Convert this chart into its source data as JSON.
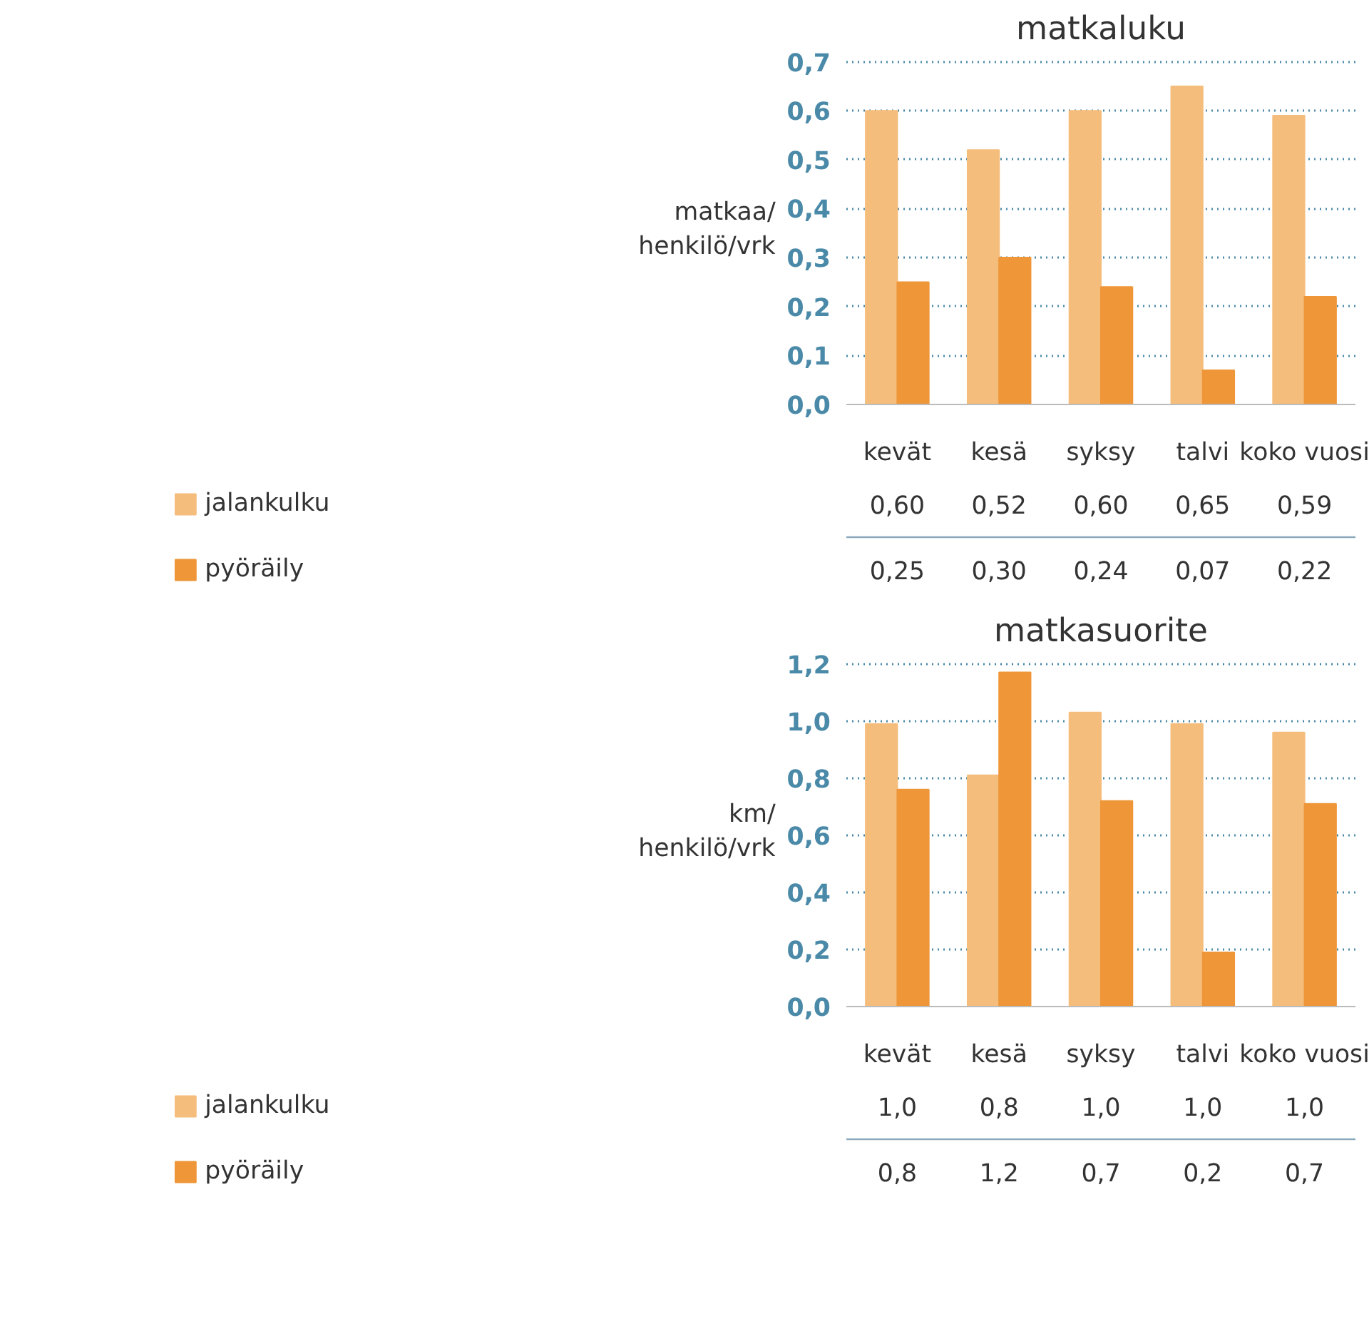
{
  "chart_data": [
    {
      "type": "bar",
      "title": "matkaluku",
      "ylabel": "matkaa/ henkilö/vrk",
      "categories": [
        "kevät",
        "kesä",
        "syksy",
        "talvi",
        "koko vuosi"
      ],
      "series": [
        {
          "name": "jalankulku",
          "color": "#f5bd7c",
          "values": [
            0.6,
            0.52,
            0.6,
            0.65,
            0.59
          ],
          "value_labels": [
            "0,60",
            "0,52",
            "0,60",
            "0,65",
            "0,59"
          ]
        },
        {
          "name": "pyöräily",
          "color": "#ee9638",
          "values": [
            0.25,
            0.3,
            0.24,
            0.07,
            0.22
          ],
          "value_labels": [
            "0,25",
            "0,30",
            "0,24",
            "0,07",
            "0,22"
          ]
        }
      ],
      "ylim": [
        0,
        0.7
      ],
      "yticks": [
        {
          "value": 0,
          "label": "0,0"
        },
        {
          "value": 0.1,
          "label": "0,1"
        },
        {
          "value": 0.2,
          "label": "0,2"
        },
        {
          "value": 0.3,
          "label": "0,3"
        },
        {
          "value": 0.4,
          "label": "0,4"
        },
        {
          "value": 0.5,
          "label": "0,5"
        },
        {
          "value": 0.6,
          "label": "0,6"
        },
        {
          "value": 0.7,
          "label": "0,7"
        }
      ],
      "grid": "y",
      "legend": "bottom"
    },
    {
      "type": "bar",
      "title": "matkasuorite",
      "ylabel": "km/ henkilö/vrk",
      "categories": [
        "kevät",
        "kesä",
        "syksy",
        "talvi",
        "koko vuosi"
      ],
      "series": [
        {
          "name": "jalankulku",
          "color": "#f5bd7c",
          "values": [
            0.99,
            0.81,
            1.03,
            0.99,
            0.96
          ],
          "value_labels": [
            "1,0",
            "0,8",
            "1,0",
            "1,0",
            "1,0"
          ]
        },
        {
          "name": "pyöräily",
          "color": "#ee9638",
          "values": [
            0.76,
            1.17,
            0.72,
            0.19,
            0.71
          ],
          "value_labels": [
            "0,8",
            "1,2",
            "0,7",
            "0,2",
            "0,7"
          ]
        }
      ],
      "ylim": [
        0,
        1.2
      ],
      "yticks": [
        {
          "value": 0,
          "label": "0,0"
        },
        {
          "value": 0.2,
          "label": "0,2"
        },
        {
          "value": 0.4,
          "label": "0,4"
        },
        {
          "value": 0.6,
          "label": "0,6"
        },
        {
          "value": 0.8,
          "label": "0,8"
        },
        {
          "value": 1.0,
          "label": "1,0"
        },
        {
          "value": 1.2,
          "label": "1,2"
        }
      ],
      "grid": "y",
      "legend": "bottom"
    }
  ]
}
